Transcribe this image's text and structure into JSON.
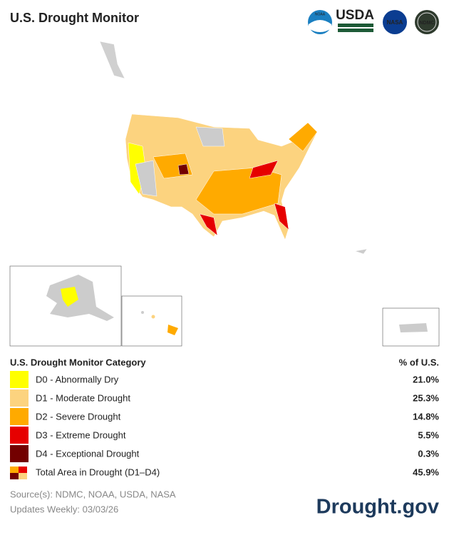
{
  "header": {
    "title": "U.S. Drought Monitor",
    "logos": [
      "NOAA",
      "USDA",
      "NASA",
      "NDMC"
    ]
  },
  "legend": {
    "header": "U.S. Drought Monitor Category",
    "value_header": "% of U.S.",
    "rows": [
      {
        "label": "D0 - Abnormally Dry",
        "value": "21.0%",
        "color": "#ffff00"
      },
      {
        "label": "D1 - Moderate Drought",
        "value": "25.3%",
        "color": "#fcd37f"
      },
      {
        "label": "D2 - Severe Drought",
        "value": "14.8%",
        "color": "#ffaa00"
      },
      {
        "label": "D3 - Extreme Drought",
        "value": "5.5%",
        "color": "#e60000"
      },
      {
        "label": "D4 - Exceptional Drought",
        "value": "0.3%",
        "color": "#730000"
      },
      {
        "label": "Total Area in Drought (D1–D4)",
        "value": "45.9%"
      }
    ]
  },
  "footer": {
    "source": "Source(s): NDMC, NOAA, USDA, NASA",
    "updates": "Updates Weekly: 03/03/26",
    "brand": "Drought.gov"
  }
}
